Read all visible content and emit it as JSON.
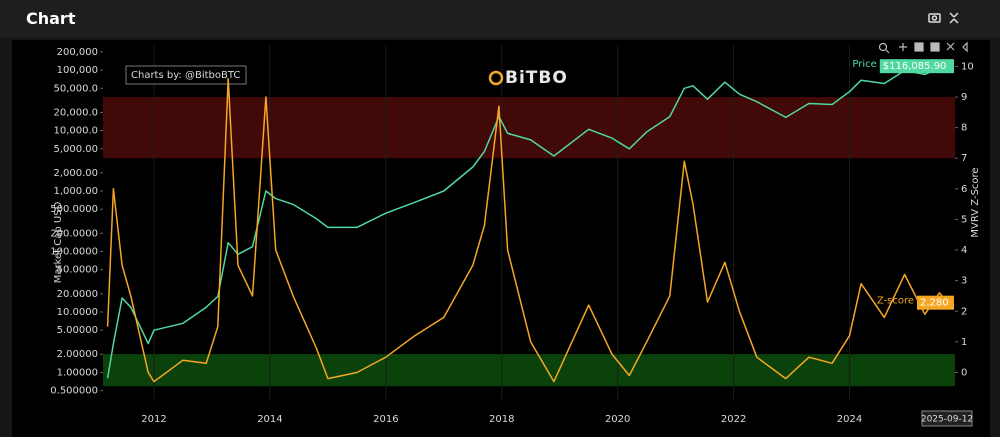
{
  "header": {
    "title": "Chart"
  },
  "chart_data": {
    "type": "line",
    "credit": "Charts by: @BitboBTC",
    "logo": "BiTBO",
    "y_label": "Market Cap USD",
    "y2_label": "MVRV Z-Score",
    "cursor_label": "2025-09-12",
    "log_y": true,
    "grid": true,
    "xlim": [
      2011.12,
      2025.82
    ],
    "xticks": [
      2012,
      2014,
      2016,
      2018,
      2020,
      2022,
      2024
    ],
    "ylim": [
      0.35,
      260000
    ],
    "yticks": [
      {
        "value": 0.5,
        "label": "0.500000"
      },
      {
        "value": 1,
        "label": "1.00000"
      },
      {
        "value": 2,
        "label": "2.00000"
      },
      {
        "value": 5,
        "label": "5.00000"
      },
      {
        "value": 10,
        "label": "10.0000"
      },
      {
        "value": 20,
        "label": "20.0000"
      },
      {
        "value": 50,
        "label": "50.0000"
      },
      {
        "value": 100,
        "label": "100.0000"
      },
      {
        "value": 200,
        "label": "200.0000"
      },
      {
        "value": 500,
        "label": "500.0000"
      },
      {
        "value": 1000,
        "label": "1,000.00"
      },
      {
        "value": 2000,
        "label": "2,000.00"
      },
      {
        "value": 5000,
        "label": "5,000.00"
      },
      {
        "value": 10000,
        "label": "10,000.0"
      },
      {
        "value": 20000,
        "label": "20,000.0"
      },
      {
        "value": 50000,
        "label": "50,000.0"
      },
      {
        "value": 100000,
        "label": "100,000"
      },
      {
        "value": 200000,
        "label": "200,000"
      }
    ],
    "y2lim": [
      -0.9,
      10.7
    ],
    "y2ticks": [
      0,
      1,
      2,
      3,
      4,
      5,
      6,
      7,
      8,
      9,
      10
    ],
    "bands": [
      {
        "axis": "y2",
        "from": 7,
        "to": 9,
        "color": "#4e0b0b"
      },
      {
        "axis": "y2",
        "from": -0.45,
        "to": 0.6,
        "color": "#0d4d0d"
      }
    ],
    "x": [
      2011.2,
      2011.3,
      2011.45,
      2011.6,
      2011.9,
      2012.0,
      2012.5,
      2012.9,
      2013.1,
      2013.28,
      2013.45,
      2013.7,
      2013.93,
      2014.1,
      2014.4,
      2014.8,
      2015.0,
      2015.5,
      2016.0,
      2016.5,
      2017.0,
      2017.5,
      2017.7,
      2017.95,
      2018.1,
      2018.5,
      2018.9,
      2019.5,
      2019.9,
      2020.2,
      2020.5,
      2020.9,
      2021.15,
      2021.3,
      2021.55,
      2021.85,
      2022.1,
      2022.4,
      2022.9,
      2023.3,
      2023.7,
      2024.0,
      2024.2,
      2024.6,
      2024.95,
      2025.3,
      2025.55,
      2025.7
    ],
    "series": [
      {
        "name": "Price",
        "color": "#4fd9a0",
        "axis": "y",
        "values": [
          0.8,
          3,
          17,
          12,
          3,
          5,
          6.5,
          12,
          18,
          140,
          90,
          120,
          1000,
          750,
          600,
          350,
          250,
          250,
          430,
          650,
          1000,
          2500,
          4500,
          17000,
          9000,
          7000,
          3800,
          10500,
          7500,
          5000,
          9500,
          17000,
          50000,
          55000,
          33000,
          63000,
          40000,
          30000,
          16500,
          28000,
          27000,
          44000,
          68000,
          60000,
          98000,
          85000,
          108000,
          116085.9
        ],
        "value_labels": [
          null,
          null,
          null,
          null,
          null,
          null,
          null,
          null,
          null,
          null,
          null,
          null,
          null,
          null,
          null,
          null,
          null,
          null,
          null,
          null,
          null,
          null,
          null,
          null,
          null,
          null,
          null,
          null,
          null,
          null,
          null,
          null,
          null,
          null,
          null,
          null,
          null,
          null,
          null,
          null,
          null,
          null,
          null,
          null,
          null,
          null,
          null,
          "$116,085.90"
        ]
      },
      {
        "name": "Z-score",
        "color": "#f5a623",
        "axis": "y2",
        "values": [
          1.5,
          6.0,
          3.5,
          2.5,
          0.0,
          -0.3,
          0.4,
          0.3,
          1.5,
          9.6,
          3.5,
          2.5,
          9.0,
          4.0,
          2.5,
          0.8,
          -0.2,
          0.0,
          0.5,
          1.2,
          1.8,
          3.5,
          4.8,
          8.7,
          4.0,
          1.0,
          -0.3,
          2.2,
          0.6,
          -0.1,
          1.0,
          2.5,
          6.9,
          5.5,
          2.3,
          3.6,
          2.0,
          0.5,
          -0.2,
          0.5,
          0.3,
          1.2,
          2.9,
          1.8,
          3.2,
          1.9,
          2.6,
          2.28
        ],
        "value_labels": [
          null,
          null,
          null,
          null,
          null,
          null,
          null,
          null,
          null,
          null,
          null,
          null,
          null,
          null,
          null,
          null,
          null,
          null,
          null,
          null,
          null,
          null,
          null,
          null,
          null,
          null,
          null,
          null,
          null,
          null,
          null,
          null,
          null,
          null,
          null,
          null,
          null,
          null,
          null,
          null,
          null,
          null,
          null,
          null,
          null,
          null,
          null,
          "2.280"
        ]
      }
    ]
  }
}
